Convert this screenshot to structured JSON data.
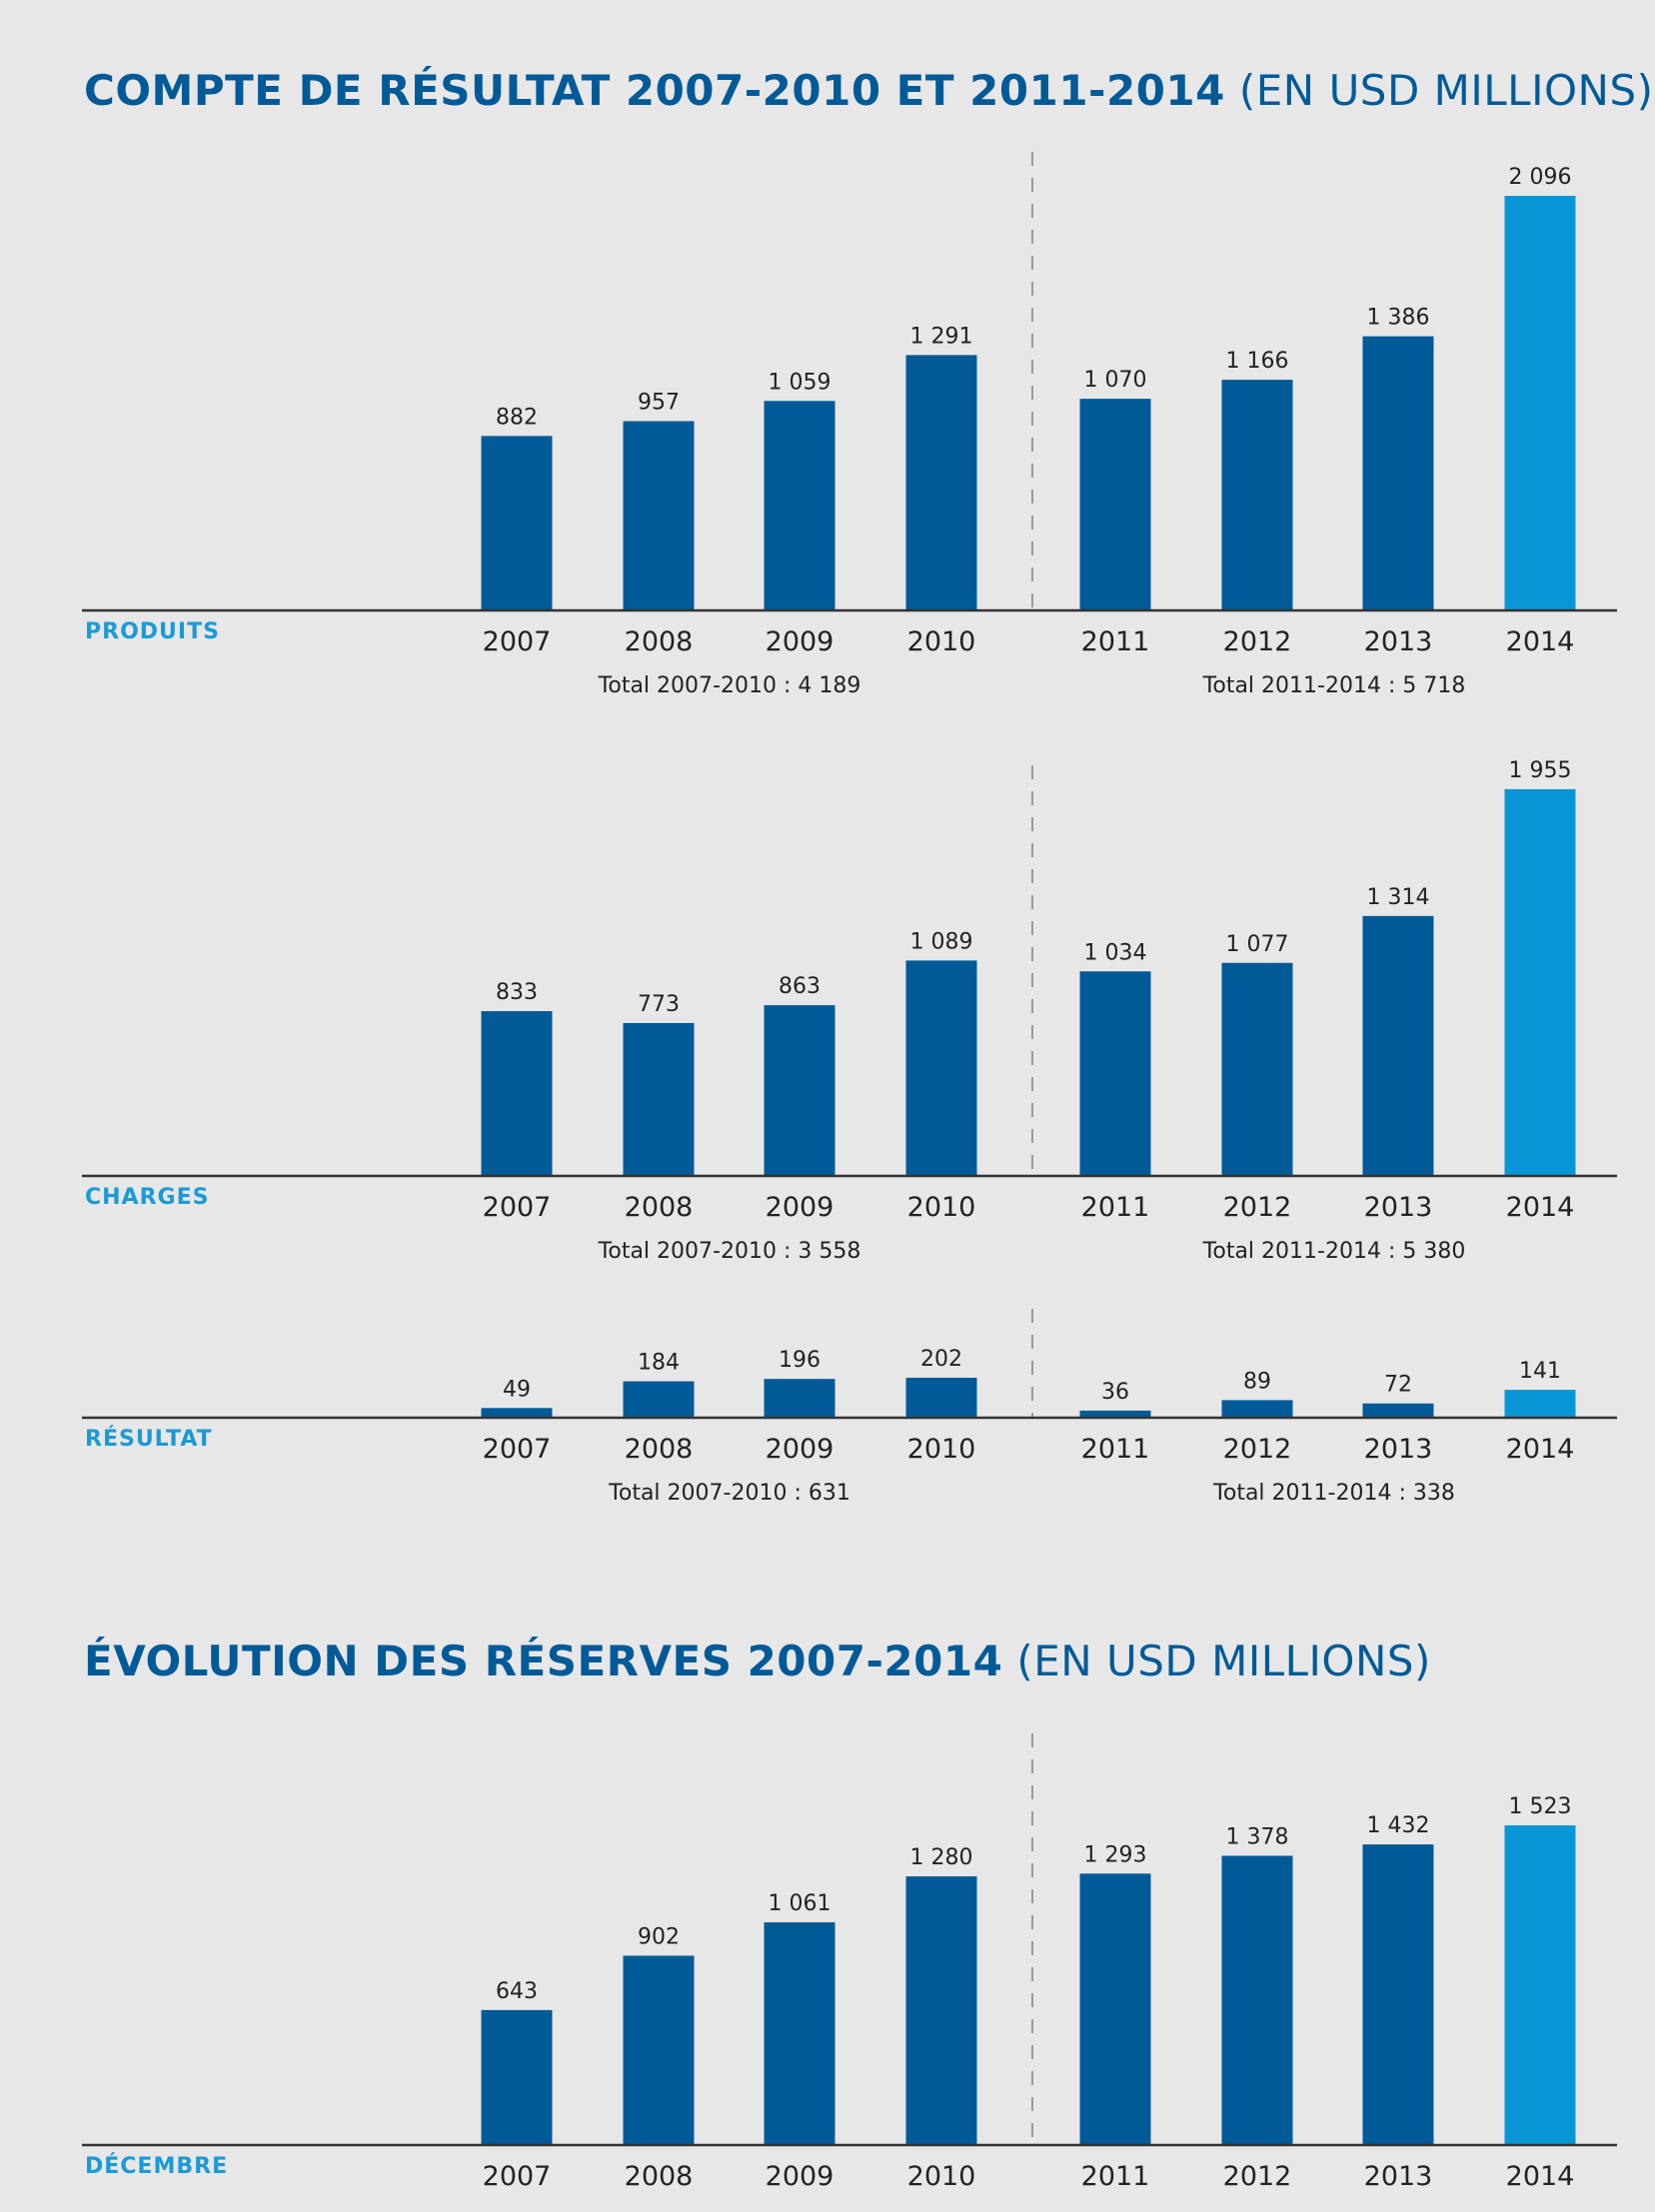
{
  "titles": {
    "income": {
      "main": "COMPTE DE RÉSULTAT 2007-2010 ET 2011-2014",
      "unit": "(EN USD MILLIONS)"
    },
    "reserves": {
      "main": "ÉVOLUTION DES RÉSERVES 2007-2014",
      "unit": "(EN USD MILLIONS)"
    }
  },
  "colors": {
    "bar": "#005a98",
    "highlight": "#0896d6",
    "label": "#1a9ad6",
    "axis": "#333333",
    "divider": "#999999"
  },
  "chart_data": [
    {
      "type": "bar",
      "title": "COMPTE DE RÉSULTAT 2007-2010 ET 2011-2014 (EN USD MILLIONS)",
      "series_label": "PRODUITS",
      "categories": [
        "2007",
        "2008",
        "2009",
        "2010",
        "2011",
        "2012",
        "2013",
        "2014"
      ],
      "values": [
        882,
        957,
        1059,
        1291,
        1070,
        1166,
        1386,
        2096
      ],
      "value_labels": [
        "882",
        "957",
        "1 059",
        "1 291",
        "1 070",
        "1 166",
        "1 386",
        "2 096"
      ],
      "highlight_index": 7,
      "totals": [
        "Total 2007-2010 : 4 189",
        "Total 2011-2014 : 5 718"
      ],
      "ylim": [
        0,
        2096
      ]
    },
    {
      "type": "bar",
      "series_label": "CHARGES",
      "categories": [
        "2007",
        "2008",
        "2009",
        "2010",
        "2011",
        "2012",
        "2013",
        "2014"
      ],
      "values": [
        833,
        773,
        863,
        1089,
        1034,
        1077,
        1314,
        1955
      ],
      "value_labels": [
        "833",
        "773",
        "863",
        "1 089",
        "1 034",
        "1 077",
        "1 314",
        "1 955"
      ],
      "highlight_index": 7,
      "totals": [
        "Total 2007-2010 : 3 558",
        "Total 2011-2014 : 5 380"
      ],
      "ylim": [
        0,
        2096
      ]
    },
    {
      "type": "bar",
      "series_label": "RÉSULTAT",
      "categories": [
        "2007",
        "2008",
        "2009",
        "2010",
        "2011",
        "2012",
        "2013",
        "2014"
      ],
      "values": [
        49,
        184,
        196,
        202,
        36,
        89,
        72,
        141
      ],
      "value_labels": [
        "49",
        "184",
        "196",
        "202",
        "36",
        "89",
        "72",
        "141"
      ],
      "highlight_index": 7,
      "totals": [
        "Total 2007-2010 : 631",
        "Total 2011-2014 : 338"
      ],
      "ylim": [
        0,
        2096
      ]
    },
    {
      "type": "bar",
      "title": "ÉVOLUTION DES RÉSERVES 2007-2014 (EN USD MILLIONS)",
      "series_label": "DÉCEMBRE",
      "categories": [
        "2007",
        "2008",
        "2009",
        "2010",
        "2011",
        "2012",
        "2013",
        "2014"
      ],
      "values": [
        643,
        902,
        1061,
        1280,
        1293,
        1378,
        1432,
        1523
      ],
      "value_labels": [
        "643",
        "902",
        "1 061",
        "1 280",
        "1 293",
        "1 378",
        "1 432",
        "1 523"
      ],
      "highlight_index": 7,
      "totals": [],
      "ylim": [
        0,
        1523
      ]
    }
  ]
}
